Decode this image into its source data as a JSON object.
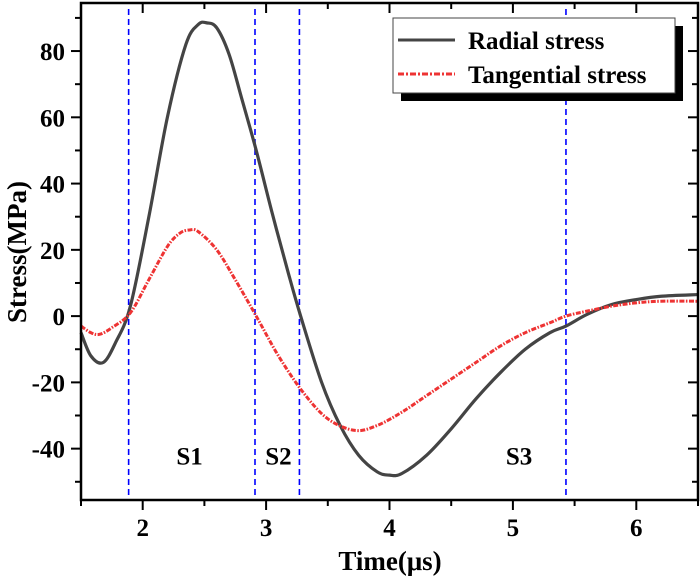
{
  "chart_data": {
    "type": "line",
    "title": "",
    "xlabel": "Time(μs)",
    "ylabel": "Stress(MPa)",
    "xlim": [
      1.5,
      6.5
    ],
    "ylim": [
      -55.5,
      94.5
    ],
    "xticks": [
      2,
      3,
      4,
      5,
      6
    ],
    "xtick_labels": [
      "2",
      "3",
      "4",
      "5",
      "6"
    ],
    "yticks": [
      -40,
      -20,
      0,
      20,
      40,
      60,
      80
    ],
    "ytick_labels": [
      "-40",
      "-20",
      "0",
      "20",
      "40",
      "60",
      "80"
    ],
    "grid": false,
    "legend_position": "top-right",
    "series": [
      {
        "name": "Radial stress",
        "color": "#444444",
        "style": "solid",
        "x": [
          1.5,
          1.58,
          1.68,
          1.78,
          1.9,
          2.05,
          2.2,
          2.35,
          2.45,
          2.52,
          2.6,
          2.7,
          2.8,
          2.92,
          3.05,
          3.18,
          3.28,
          3.45,
          3.6,
          3.75,
          3.9,
          4.0,
          4.1,
          4.3,
          4.5,
          4.7,
          4.9,
          5.1,
          5.3,
          5.43,
          5.6,
          5.8,
          6.0,
          6.2,
          6.5
        ],
        "y": [
          -5,
          -12,
          -14,
          -8,
          3,
          30,
          60,
          82,
          88,
          88.5,
          87,
          79,
          66,
          50,
          31,
          13,
          0,
          -20,
          -33,
          -42,
          -47,
          -48,
          -47.5,
          -42,
          -34,
          -25,
          -17,
          -10,
          -5,
          -3,
          0.5,
          3.5,
          5,
          6,
          6.5
        ]
      },
      {
        "name": "Tangential stress",
        "color": "#ee3333",
        "style": "dash-dot",
        "x": [
          1.5,
          1.58,
          1.65,
          1.75,
          1.9,
          2.05,
          2.2,
          2.3,
          2.38,
          2.45,
          2.6,
          2.75,
          2.92,
          3.1,
          3.3,
          3.5,
          3.72,
          3.9,
          4.1,
          4.3,
          4.5,
          4.7,
          4.9,
          5.1,
          5.3,
          5.43,
          5.6,
          5.8,
          6.0,
          6.2,
          6.5
        ],
        "y": [
          -3,
          -5,
          -5.5,
          -3.5,
          1,
          11,
          21,
          25,
          26,
          25.5,
          20,
          11,
          0,
          -12,
          -23,
          -31,
          -34.5,
          -33,
          -29,
          -24,
          -19,
          -14,
          -9,
          -5,
          -2,
          0,
          1.5,
          3,
          4,
          4.5,
          4.5
        ]
      }
    ],
    "vlines": [
      1.886,
      2.91,
      3.27,
      5.43
    ],
    "vline_color": "#0000ff",
    "annotations": [
      {
        "text": "S1",
        "x": 2.38,
        "y": -42
      },
      {
        "text": "S2",
        "x": 3.1,
        "y": -42
      },
      {
        "text": "S3",
        "x": 5.05,
        "y": -42
      }
    ]
  }
}
